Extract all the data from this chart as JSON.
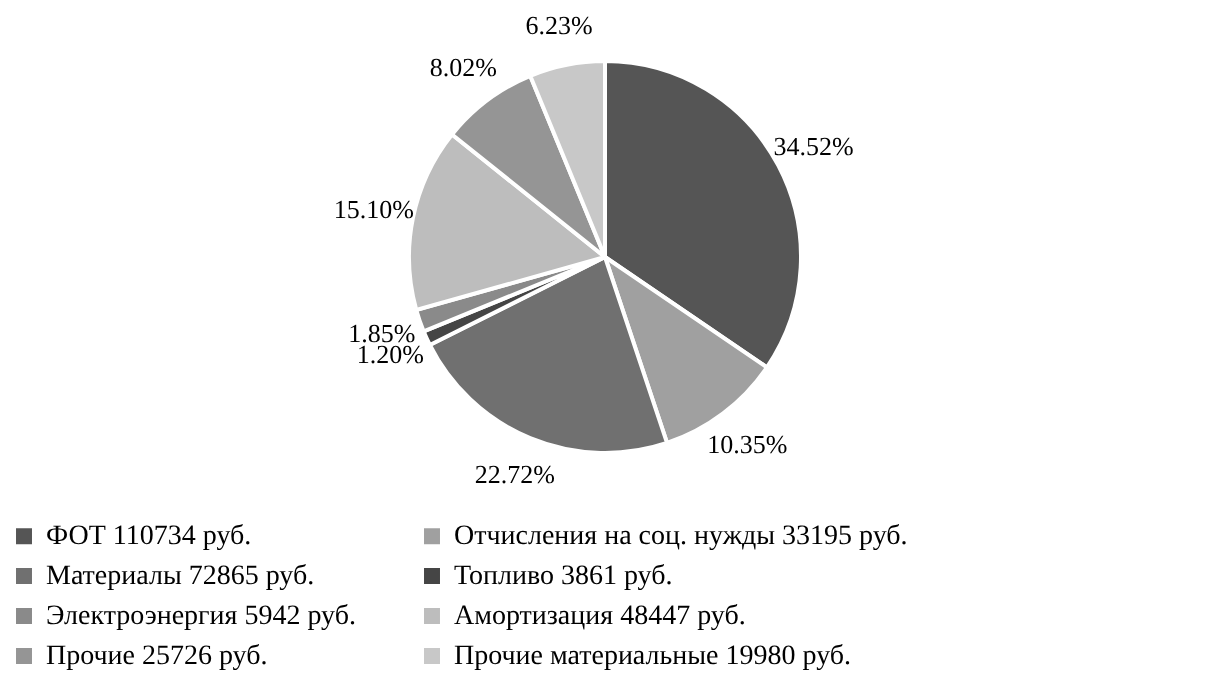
{
  "chart_data": {
    "type": "pie",
    "categories": [
      "ФОТ  110734 руб.",
      "Отчисления на соц. нужды 33195 руб.",
      "Материалы 72865 руб.",
      "Топливо 3861 руб.",
      "Электроэнергия 5942 руб.",
      "Амортизация 48447 руб.",
      "Прочие 25726 руб.",
      "Прочие материальные 19980 руб."
    ],
    "values": [
      34.52,
      10.35,
      22.72,
      1.2,
      1.85,
      15.1,
      8.02,
      6.23
    ],
    "value_labels": [
      "34.52%",
      "10.35%",
      "22.72%",
      "1.20%",
      "1.85%",
      "15.10%",
      "8.02%",
      "6.23%"
    ],
    "colors": [
      "#555555",
      "#a0a0a0",
      "#707070",
      "#454545",
      "#8a8a8a",
      "#bdbdbd",
      "#959595",
      "#c8c8c8"
    ],
    "legend": "bottom"
  }
}
